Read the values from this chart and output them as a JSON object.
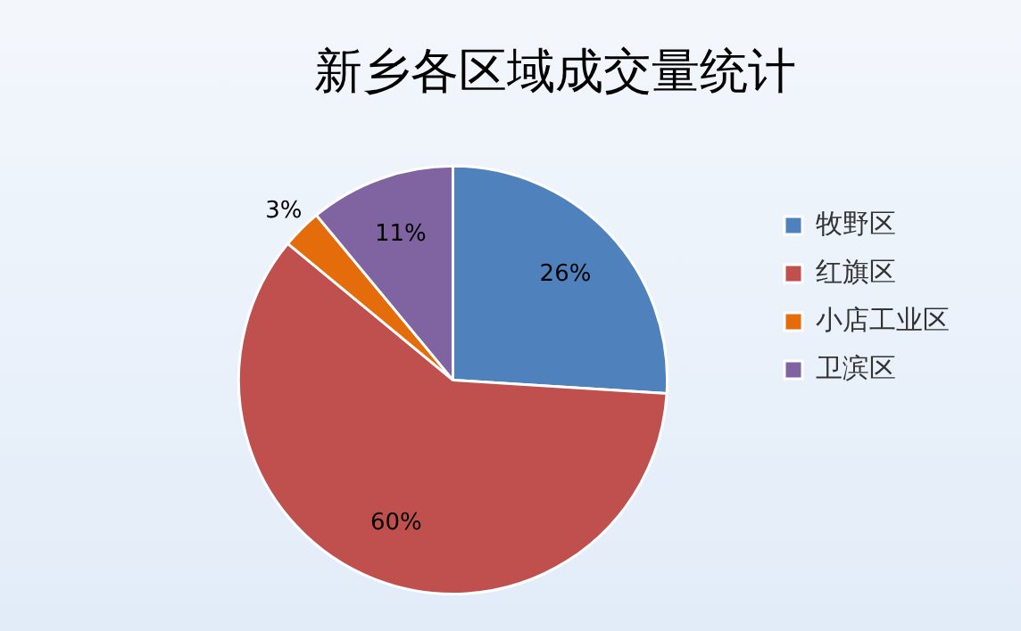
{
  "chart_data": {
    "type": "pie",
    "title": "新乡各区域成交量统计",
    "categories": [
      "牧野区",
      "红旗区",
      "小店工业区",
      "卫滨区"
    ],
    "values": [
      26,
      60,
      3,
      11
    ],
    "colors": [
      "#4f81bd",
      "#c0504d",
      "#e46c0a",
      "#8064a2"
    ],
    "value_labels": [
      "26%",
      "60%",
      "3%",
      "11%"
    ],
    "legend": "right"
  }
}
